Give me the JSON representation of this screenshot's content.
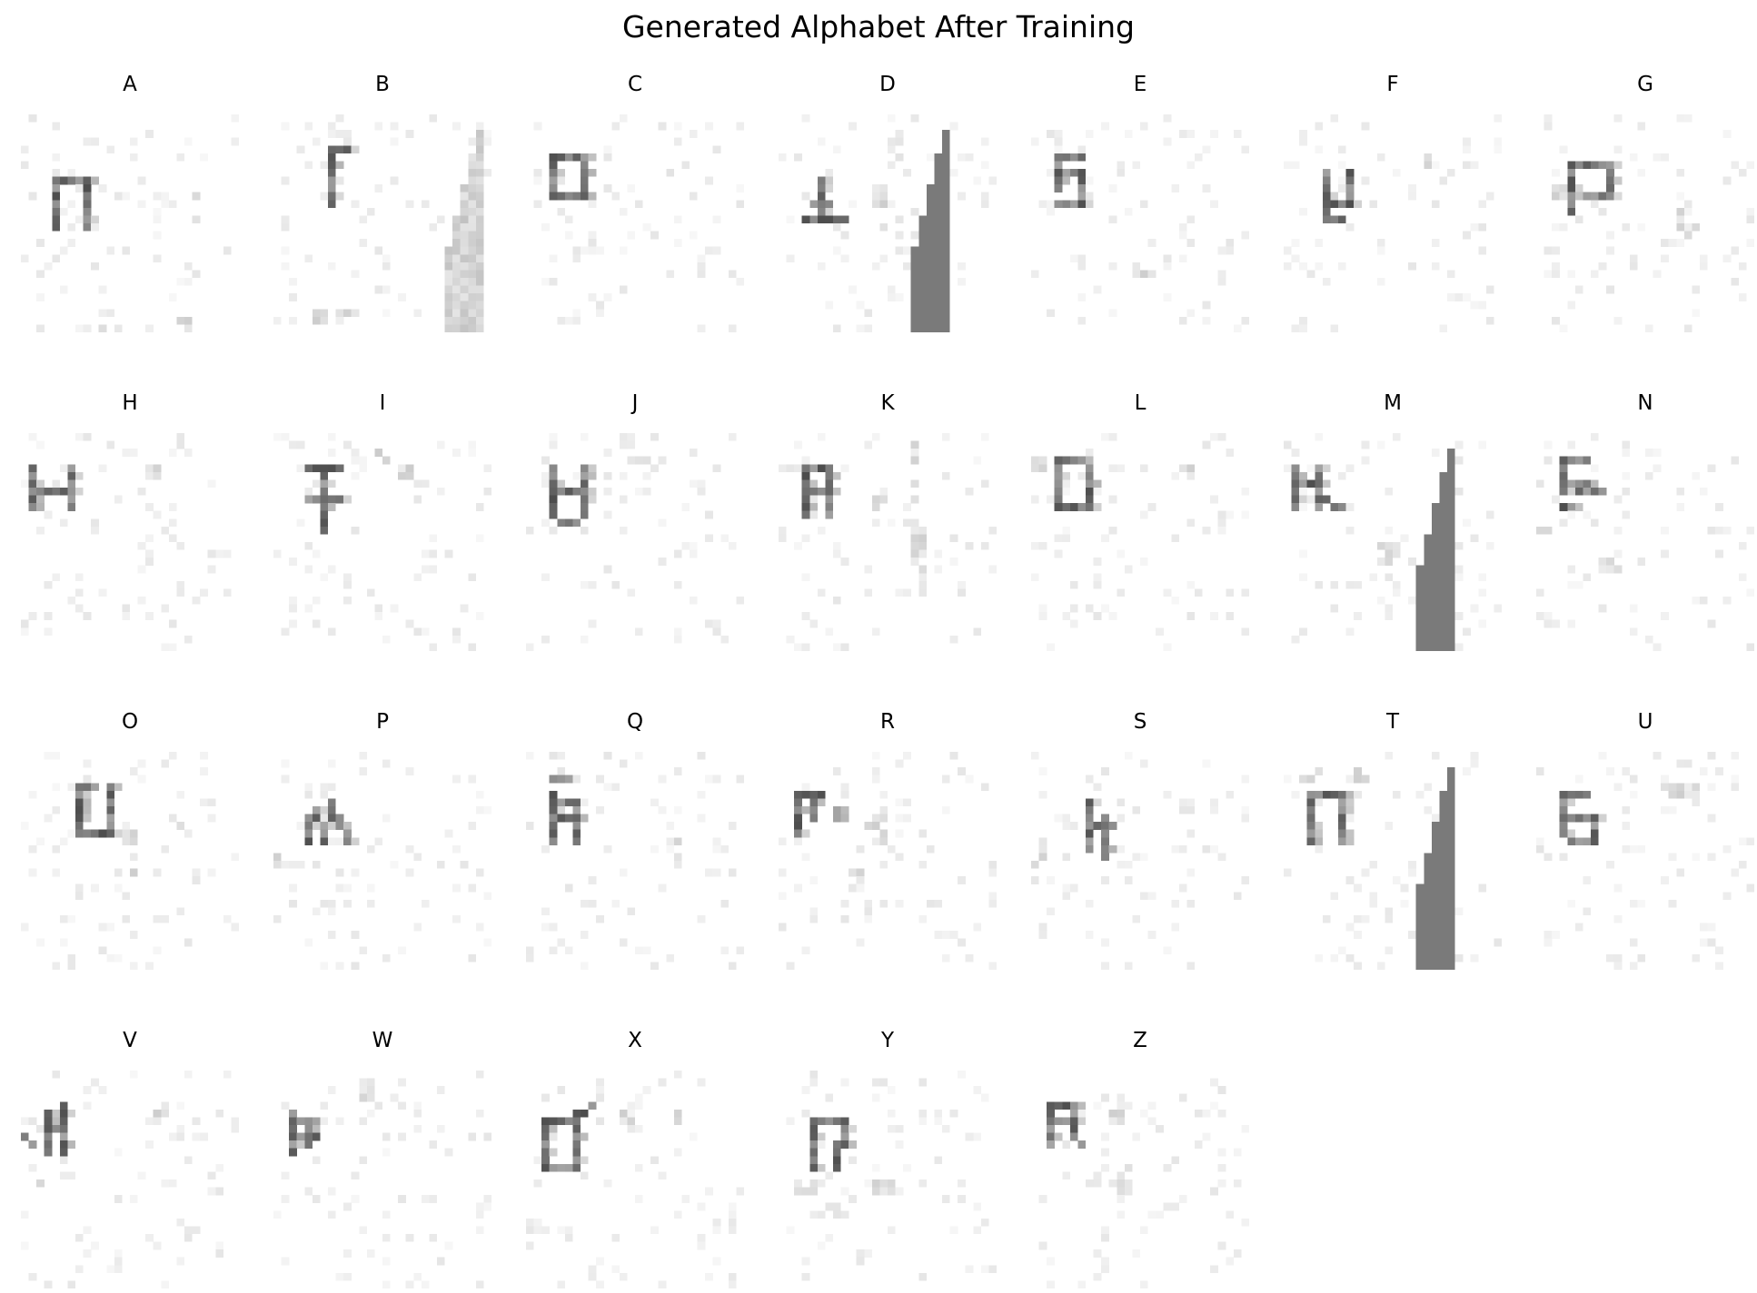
{
  "title": "Generated Alphabet After Training",
  "panels": [
    {
      "label": "A",
      "seed": 11,
      "strokes": [
        [
          4,
          8,
          4,
          14
        ],
        [
          4,
          8,
          8,
          8
        ],
        [
          8,
          8,
          8,
          14
        ]
      ],
      "noise": [
        [
          22,
          10,
          22,
          14
        ],
        [
          8,
          27,
          18,
          28
        ],
        [
          19,
          26,
          21,
          28
        ]
      ],
      "bar": null
    },
    {
      "label": "B",
      "seed": 23,
      "strokes": [
        [
          7,
          4,
          7,
          11
        ],
        [
          7,
          4,
          9,
          4
        ]
      ],
      "noise": [
        [
          26,
          3,
          26,
          8
        ],
        [
          5,
          25,
          10,
          26
        ]
      ],
      "bar": {
        "kind": "light",
        "col": 22
      }
    },
    {
      "label": "C",
      "seed": 37,
      "strokes": [
        [
          3,
          5,
          3,
          10
        ],
        [
          3,
          5,
          7,
          5
        ],
        [
          7,
          5,
          7,
          10
        ],
        [
          3,
          10,
          7,
          10
        ]
      ],
      "noise": [
        [
          18,
          6,
          20,
          7
        ]
      ],
      "bar": null
    },
    {
      "label": "D",
      "seed": 41,
      "strokes": [
        [
          5,
          8,
          5,
          13
        ],
        [
          3,
          13,
          8,
          13
        ],
        [
          4,
          11,
          6,
          11
        ]
      ],
      "noise": [
        [
          12,
          9,
          13,
          14
        ],
        [
          14,
          3,
          15,
          6
        ]
      ],
      "bar": {
        "kind": "dark",
        "col": 17
      }
    },
    {
      "label": "E",
      "seed": 53,
      "strokes": [
        [
          3,
          5,
          3,
          9
        ],
        [
          3,
          5,
          6,
          5
        ],
        [
          3,
          7,
          6,
          7
        ],
        [
          6,
          7,
          6,
          11
        ],
        [
          3,
          11,
          6,
          11
        ]
      ],
      "noise": [
        [
          2,
          1,
          3,
          2
        ],
        [
          13,
          19,
          15,
          20
        ]
      ],
      "bar": null
    },
    {
      "label": "F",
      "seed": 67,
      "strokes": [
        [
          5,
          7,
          5,
          13
        ],
        [
          8,
          7,
          8,
          11
        ],
        [
          5,
          11,
          8,
          11
        ],
        [
          5,
          13,
          7,
          13
        ]
      ],
      "noise": [
        [
          18,
          4,
          18,
          6
        ]
      ],
      "bar": null
    },
    {
      "label": "G",
      "seed": 71,
      "strokes": [
        [
          4,
          6,
          4,
          12
        ],
        [
          4,
          6,
          9,
          6
        ],
        [
          9,
          6,
          9,
          9
        ],
        [
          6,
          10,
          9,
          10
        ]
      ],
      "noise": [
        [
          18,
          8,
          18,
          14
        ],
        [
          19,
          14,
          21,
          15
        ],
        [
          2,
          9,
          3,
          10
        ]
      ],
      "bar": null
    },
    {
      "label": "H",
      "seed": 83,
      "strokes": [
        [
          1,
          4,
          1,
          9
        ],
        [
          6,
          4,
          6,
          9
        ],
        [
          1,
          7,
          6,
          7
        ]
      ],
      "noise": [
        [
          16,
          4,
          17,
          5
        ]
      ],
      "bar": null
    },
    {
      "label": "I",
      "seed": 97,
      "strokes": [
        [
          6,
          4,
          6,
          12
        ],
        [
          4,
          4,
          8,
          4
        ],
        [
          4,
          8,
          8,
          8
        ]
      ],
      "noise": [
        [
          13,
          2,
          14,
          3
        ],
        [
          16,
          4,
          17,
          5
        ]
      ],
      "bar": null
    },
    {
      "label": "J",
      "seed": 101,
      "strokes": [
        [
          3,
          4,
          3,
          10
        ],
        [
          7,
          4,
          7,
          10
        ],
        [
          3,
          7,
          7,
          7
        ],
        [
          4,
          11,
          6,
          11
        ]
      ],
      "noise": [
        [
          12,
          0,
          13,
          1
        ],
        [
          14,
          2,
          15,
          3
        ]
      ],
      "bar": null
    },
    {
      "label": "K",
      "seed": 113,
      "strokes": [
        [
          3,
          4,
          3,
          10
        ],
        [
          6,
          4,
          6,
          10
        ],
        [
          3,
          4,
          6,
          4
        ],
        [
          3,
          7,
          6,
          7
        ]
      ],
      "noise": [
        [
          17,
          1,
          17,
          8
        ],
        [
          17,
          13,
          18,
          20
        ],
        [
          12,
          7,
          13,
          9
        ]
      ],
      "bar": null
    },
    {
      "label": "L",
      "seed": 127,
      "strokes": [
        [
          3,
          3,
          3,
          9
        ],
        [
          3,
          3,
          6,
          3
        ],
        [
          7,
          4,
          7,
          9
        ],
        [
          3,
          9,
          7,
          9
        ]
      ],
      "noise": [
        [
          0,
          3,
          1,
          4
        ],
        [
          19,
          4,
          20,
          5
        ]
      ],
      "bar": null
    },
    {
      "label": "M",
      "seed": 131,
      "strokes": [
        [
          1,
          4,
          1,
          9
        ],
        [
          4,
          4,
          4,
          9
        ],
        [
          1,
          6,
          4,
          6
        ],
        [
          5,
          8,
          7,
          9
        ]
      ],
      "noise": [
        [
          12,
          14,
          14,
          16
        ]
      ],
      "bar": {
        "kind": "dark",
        "col": 17
      }
    },
    {
      "label": "N",
      "seed": 149,
      "strokes": [
        [
          3,
          3,
          3,
          7
        ],
        [
          3,
          3,
          6,
          3
        ],
        [
          3,
          6,
          6,
          6
        ],
        [
          5,
          7,
          8,
          7
        ],
        [
          3,
          9,
          4,
          9
        ]
      ],
      "noise": [
        [
          0,
          12,
          2,
          13
        ],
        [
          8,
          16,
          10,
          17
        ]
      ],
      "bar": null
    },
    {
      "label": "O",
      "seed": 163,
      "strokes": [
        [
          7,
          4,
          7,
          10
        ],
        [
          11,
          4,
          11,
          10
        ],
        [
          7,
          10,
          11,
          10
        ],
        [
          7,
          4,
          9,
          4
        ]
      ],
      "noise": [
        [
          13,
          10,
          14,
          15
        ],
        [
          19,
          8,
          20,
          9
        ]
      ],
      "bar": null
    },
    {
      "label": "P",
      "seed": 173,
      "strokes": [
        [
          4,
          8,
          4,
          11
        ],
        [
          5,
          7,
          6,
          11
        ],
        [
          7,
          6,
          7,
          8
        ],
        [
          8,
          8,
          9,
          11
        ]
      ],
      "noise": [
        [
          0,
          13,
          3,
          14
        ]
      ],
      "bar": null
    },
    {
      "label": "Q",
      "seed": 181,
      "strokes": [
        [
          3,
          5,
          3,
          11
        ],
        [
          6,
          6,
          6,
          11
        ],
        [
          3,
          6,
          6,
          6
        ],
        [
          3,
          8,
          6,
          8
        ],
        [
          3,
          3,
          5,
          3
        ]
      ],
      "noise": [
        [
          3,
          0,
          4,
          1
        ],
        [
          18,
          11,
          19,
          13
        ]
      ],
      "bar": null
    },
    {
      "label": "R",
      "seed": 193,
      "strokes": [
        [
          2,
          5,
          2,
          10
        ],
        [
          2,
          5,
          5,
          5
        ],
        [
          4,
          5,
          4,
          8
        ],
        [
          7,
          7,
          7,
          8
        ]
      ],
      "noise": [
        [
          11,
          7,
          13,
          11
        ],
        [
          9,
          15,
          10,
          17
        ]
      ],
      "bar": null
    },
    {
      "label": "S",
      "seed": 197,
      "strokes": [
        [
          7,
          6,
          7,
          12
        ],
        [
          9,
          8,
          9,
          13
        ],
        [
          7,
          9,
          10,
          9
        ]
      ],
      "noise": [
        [
          0,
          13,
          1,
          14
        ]
      ],
      "bar": null
    },
    {
      "label": "T",
      "seed": 211,
      "strokes": [
        [
          3,
          5,
          3,
          11
        ],
        [
          7,
          5,
          7,
          11
        ],
        [
          3,
          5,
          7,
          5
        ]
      ],
      "noise": [
        [
          2,
          2,
          4,
          3
        ],
        [
          9,
          2,
          10,
          3
        ]
      ],
      "bar": {
        "kind": "dark",
        "col": 17
      }
    },
    {
      "label": "U",
      "seed": 223,
      "strokes": [
        [
          3,
          5,
          3,
          10
        ],
        [
          3,
          5,
          6,
          5
        ],
        [
          3,
          8,
          7,
          8
        ],
        [
          7,
          8,
          7,
          11
        ],
        [
          4,
          11,
          7,
          11
        ]
      ],
      "noise": [
        [
          16,
          4,
          20,
          5
        ],
        [
          0,
          12,
          1,
          13
        ]
      ],
      "bar": null
    },
    {
      "label": "V",
      "seed": 229,
      "strokes": [
        [
          3,
          5,
          3,
          10
        ],
        [
          5,
          4,
          5,
          10
        ],
        [
          3,
          7,
          5,
          7
        ],
        [
          0,
          8,
          1,
          9
        ]
      ],
      "noise": [
        [
          2,
          13,
          3,
          14
        ],
        [
          17,
          4,
          18,
          6
        ]
      ],
      "bar": null
    },
    {
      "label": "W",
      "seed": 239,
      "strokes": [
        [
          2,
          5,
          2,
          10
        ],
        [
          2,
          6,
          5,
          6
        ],
        [
          4,
          6,
          4,
          9
        ],
        [
          2,
          8,
          5,
          8
        ]
      ],
      "noise": [
        [
          13,
          4,
          13,
          8
        ],
        [
          11,
          2,
          12,
          3
        ]
      ],
      "bar": null
    },
    {
      "label": "X",
      "seed": 251,
      "strokes": [
        [
          2,
          6,
          2,
          12
        ],
        [
          6,
          6,
          6,
          12
        ],
        [
          2,
          6,
          6,
          6
        ],
        [
          2,
          12,
          6,
          12
        ],
        [
          6,
          5,
          8,
          4
        ]
      ],
      "noise": [
        [
          12,
          4,
          13,
          7
        ],
        [
          19,
          5,
          20,
          6
        ]
      ],
      "bar": null
    },
    {
      "label": "Y",
      "seed": 257,
      "strokes": [
        [
          4,
          6,
          4,
          12
        ],
        [
          4,
          6,
          8,
          6
        ],
        [
          8,
          6,
          8,
          9
        ],
        [
          7,
          9,
          7,
          12
        ]
      ],
      "noise": [
        [
          2,
          14,
          4,
          15
        ],
        [
          12,
          14,
          14,
          15
        ],
        [
          6,
          17,
          8,
          18
        ]
      ],
      "bar": null
    },
    {
      "label": "Z",
      "seed": 263,
      "strokes": [
        [
          2,
          4,
          2,
          9
        ],
        [
          2,
          4,
          5,
          4
        ],
        [
          5,
          4,
          5,
          7
        ],
        [
          2,
          6,
          5,
          6
        ],
        [
          5,
          8,
          6,
          9
        ]
      ],
      "noise": [
        [
          10,
          4,
          11,
          6
        ],
        [
          11,
          12,
          12,
          15
        ]
      ],
      "bar": null
    }
  ]
}
